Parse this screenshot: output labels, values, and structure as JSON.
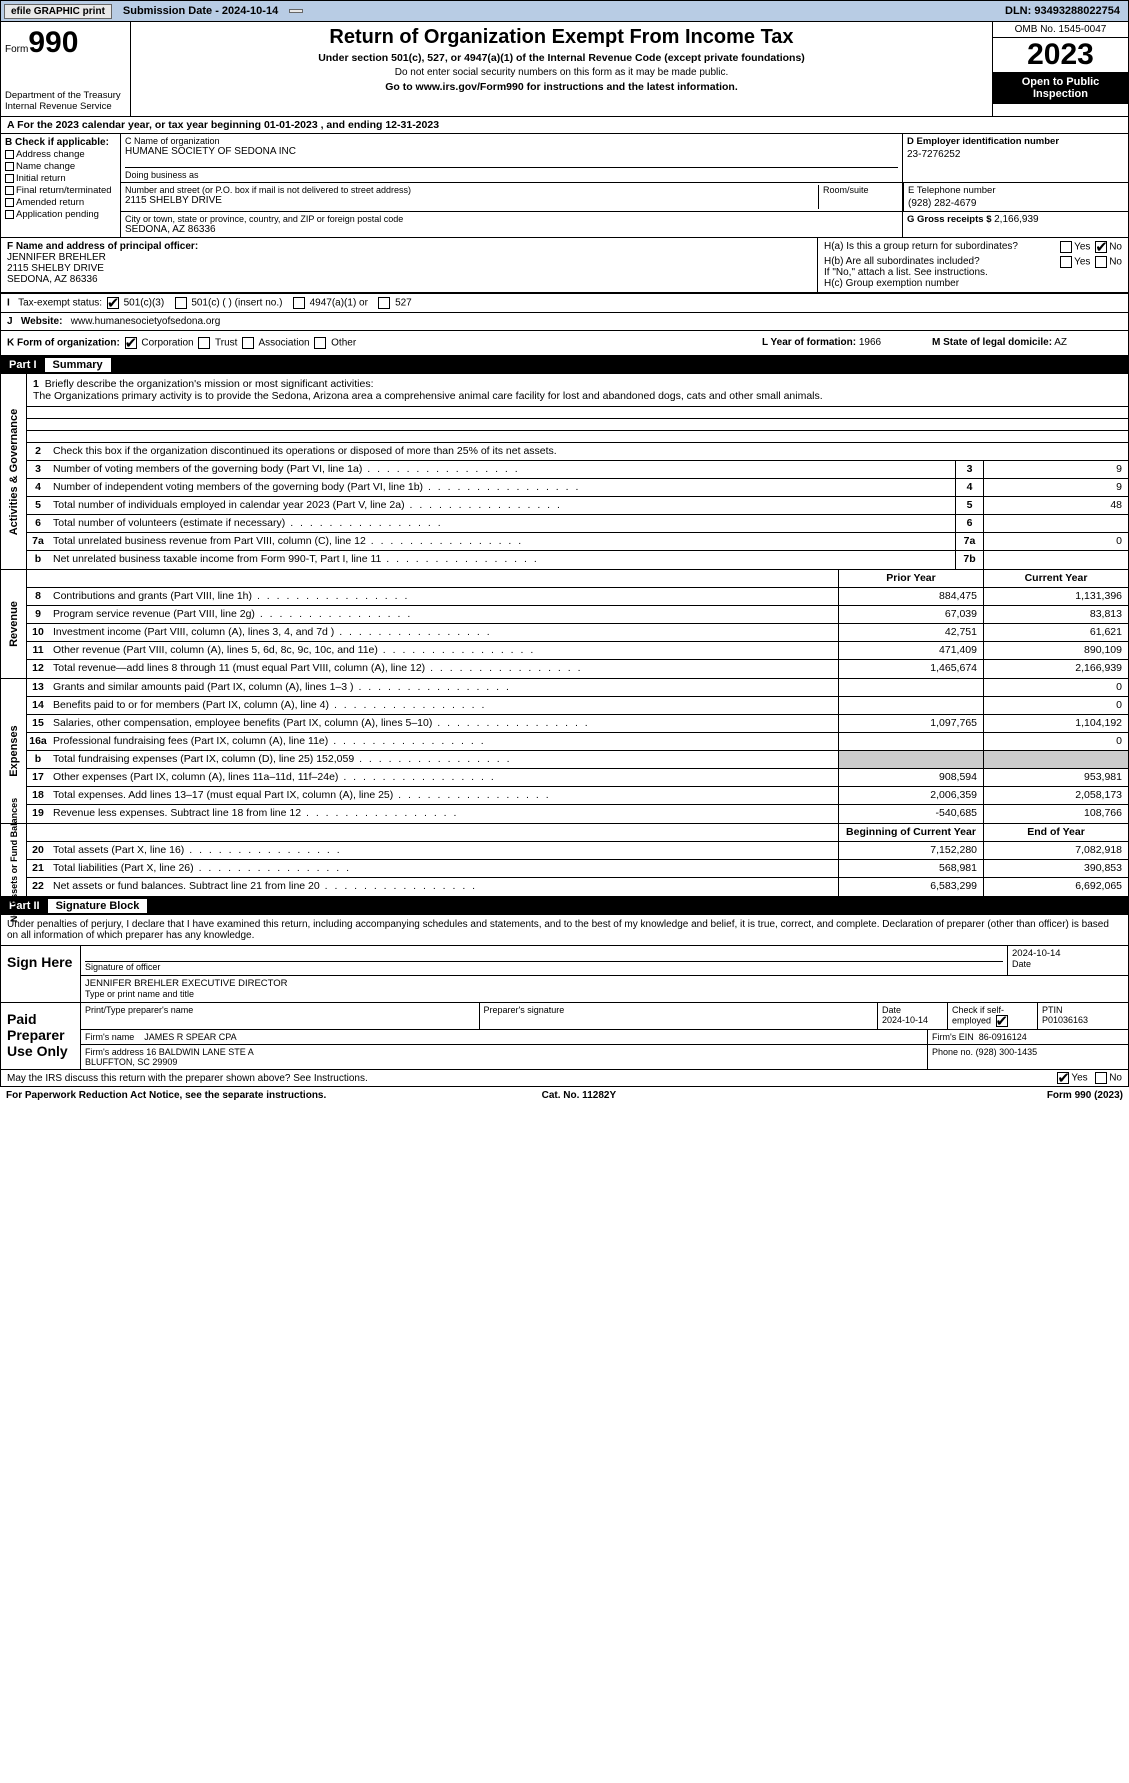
{
  "topbar": {
    "efile_label": "efile GRAPHIC print",
    "sub_date_label": "Submission Date - 2024-10-14",
    "dln": "DLN: 93493288022754"
  },
  "header": {
    "form_label": "Form",
    "form_number": "990",
    "dept": "Department of the Treasury\nInternal Revenue Service",
    "title": "Return of Organization Exempt From Income Tax",
    "sub1": "Under section 501(c), 527, or 4947(a)(1) of the Internal Revenue Code (except private foundations)",
    "sub2": "Do not enter social security numbers on this form as it may be made public.",
    "goto": "Go to www.irs.gov/Form990 for instructions and the latest information.",
    "omb": "OMB No. 1545-0047",
    "year": "2023",
    "open_pub": "Open to Public Inspection"
  },
  "row_a": "A   For the 2023 calendar year, or tax year beginning 01-01-2023    , and ending 12-31-2023",
  "box_b": {
    "label": "B Check if applicable:",
    "items": [
      "Address change",
      "Name change",
      "Initial return",
      "Final return/terminated",
      "Amended return",
      "Application pending"
    ]
  },
  "box_c": {
    "name_lbl": "C Name of organization",
    "name_val": "HUMANE SOCIETY OF SEDONA INC",
    "dba_lbl": "Doing business as",
    "dba_val": "",
    "street_lbl": "Number and street (or P.O. box if mail is not delivered to street address)",
    "street_val": "2115 SHELBY DRIVE",
    "room_lbl": "Room/suite",
    "city_lbl": "City or town, state or province, country, and ZIP or foreign postal code",
    "city_val": "SEDONA, AZ  86336"
  },
  "box_d": {
    "lbl": "D Employer identification number",
    "val": "23-7276252"
  },
  "box_e": {
    "lbl": "E Telephone number",
    "val": "(928) 282-4679"
  },
  "box_g": {
    "lbl": "G Gross receipts $",
    "val": "2,166,939"
  },
  "box_f": {
    "lbl": "F Name and address of principal officer:",
    "name": "JENNIFER BREHLER",
    "addr1": "2115 SHELBY DRIVE",
    "addr2": "SEDONA, AZ  86336"
  },
  "box_h": {
    "ha": "H(a)  Is this a group return for subordinates?",
    "hb": "H(b)  Are all subordinates included?",
    "hb_note": "If \"No,\" attach a list. See instructions.",
    "hc": "H(c)  Group exemption number",
    "yes": "Yes",
    "no": "No"
  },
  "box_i": {
    "lbl": "Tax-exempt status:",
    "o1": "501(c)(3)",
    "o2": "501(c) (  ) (insert no.)",
    "o3": "4947(a)(1) or",
    "o4": "527"
  },
  "box_j": {
    "lbl": "Website:",
    "val": "www.humanesocietyofsedona.org"
  },
  "box_k": {
    "lbl": "K Form of organization:",
    "o1": "Corporation",
    "o2": "Trust",
    "o3": "Association",
    "o4": "Other"
  },
  "box_l": {
    "lbl": "L Year of formation:",
    "val": "1966"
  },
  "box_m": {
    "lbl": "M State of legal domicile:",
    "val": "AZ"
  },
  "part1": {
    "hdr": "Part I",
    "title": "Summary"
  },
  "part2": {
    "hdr": "Part II",
    "title": "Signature Block"
  },
  "mission": {
    "lbl": "Briefly describe the organization's mission or most significant activities:",
    "text": "The Organizations primary activity is to provide the Sedona, Arizona area a comprehensive animal care facility for lost and abandoned dogs, cats and other small animals."
  },
  "line2": "Check this box      if the organization discontinued its operations or disposed of more than 25% of its net assets.",
  "lines_gov": [
    {
      "n": "3",
      "d": "Number of voting members of the governing body (Part VI, line 1a)",
      "box": "3",
      "v": "9"
    },
    {
      "n": "4",
      "d": "Number of independent voting members of the governing body (Part VI, line 1b)",
      "box": "4",
      "v": "9"
    },
    {
      "n": "5",
      "d": "Total number of individuals employed in calendar year 2023 (Part V, line 2a)",
      "box": "5",
      "v": "48"
    },
    {
      "n": "6",
      "d": "Total number of volunteers (estimate if necessary)",
      "box": "6",
      "v": ""
    },
    {
      "n": "7a",
      "d": "Total unrelated business revenue from Part VIII, column (C), line 12",
      "box": "7a",
      "v": "0"
    },
    {
      "n": "b",
      "d": "Net unrelated business taxable income from Form 990-T, Part I, line 11",
      "box": "7b",
      "v": ""
    }
  ],
  "col_hdrs": {
    "prior": "Prior Year",
    "current": "Current Year"
  },
  "lines_rev": [
    {
      "n": "8",
      "d": "Contributions and grants (Part VIII, line 1h)",
      "p": "884,475",
      "c": "1,131,396"
    },
    {
      "n": "9",
      "d": "Program service revenue (Part VIII, line 2g)",
      "p": "67,039",
      "c": "83,813"
    },
    {
      "n": "10",
      "d": "Investment income (Part VIII, column (A), lines 3, 4, and 7d )",
      "p": "42,751",
      "c": "61,621"
    },
    {
      "n": "11",
      "d": "Other revenue (Part VIII, column (A), lines 5, 6d, 8c, 9c, 10c, and 11e)",
      "p": "471,409",
      "c": "890,109"
    },
    {
      "n": "12",
      "d": "Total revenue—add lines 8 through 11 (must equal Part VIII, column (A), line 12)",
      "p": "1,465,674",
      "c": "2,166,939"
    }
  ],
  "lines_exp": [
    {
      "n": "13",
      "d": "Grants and similar amounts paid (Part IX, column (A), lines 1–3 )",
      "p": "",
      "c": "0"
    },
    {
      "n": "14",
      "d": "Benefits paid to or for members (Part IX, column (A), line 4)",
      "p": "",
      "c": "0"
    },
    {
      "n": "15",
      "d": "Salaries, other compensation, employee benefits (Part IX, column (A), lines 5–10)",
      "p": "1,097,765",
      "c": "1,104,192"
    },
    {
      "n": "16a",
      "d": "Professional fundraising fees (Part IX, column (A), line 11e)",
      "p": "",
      "c": "0"
    },
    {
      "n": "b",
      "d": "Total fundraising expenses (Part IX, column (D), line 25) 152,059",
      "p": "SHADE",
      "c": "SHADE"
    },
    {
      "n": "17",
      "d": "Other expenses (Part IX, column (A), lines 11a–11d, 11f–24e)",
      "p": "908,594",
      "c": "953,981"
    },
    {
      "n": "18",
      "d": "Total expenses. Add lines 13–17 (must equal Part IX, column (A), line 25)",
      "p": "2,006,359",
      "c": "2,058,173"
    },
    {
      "n": "19",
      "d": "Revenue less expenses. Subtract line 18 from line 12",
      "p": "-540,685",
      "c": "108,766"
    }
  ],
  "col_hdrs2": {
    "begin": "Beginning of Current Year",
    "end": "End of Year"
  },
  "lines_net": [
    {
      "n": "20",
      "d": "Total assets (Part X, line 16)",
      "p": "7,152,280",
      "c": "7,082,918"
    },
    {
      "n": "21",
      "d": "Total liabilities (Part X, line 26)",
      "p": "568,981",
      "c": "390,853"
    },
    {
      "n": "22",
      "d": "Net assets or fund balances. Subtract line 21 from line 20",
      "p": "6,583,299",
      "c": "6,692,065"
    }
  ],
  "vtabs": {
    "gov": "Activities & Governance",
    "rev": "Revenue",
    "exp": "Expenses",
    "net": "Net Assets or Fund Balances"
  },
  "sig_decl": "Under penalties of perjury, I declare that I have examined this return, including accompanying schedules and statements, and to the best of my knowledge and belief, it is true, correct, and complete. Declaration of preparer (other than officer) is based on all information of which preparer has any knowledge.",
  "sign_here": {
    "lbl": "Sign Here",
    "sig_of": "Signature of officer",
    "date": "2024-10-14",
    "name": "JENNIFER BREHLER  EXECUTIVE DIRECTOR",
    "type_lbl": "Type or print name and title",
    "date_lbl": "Date"
  },
  "paid": {
    "lbl": "Paid Preparer Use Only",
    "h1": "Print/Type preparer's name",
    "h2": "Preparer's signature",
    "h3": "Date",
    "h3v": "2024-10-14",
    "h4": "Check         if self-employed",
    "h5": "PTIN",
    "ptin": "P01036163",
    "firm_lbl": "Firm's name",
    "firm": "JAMES R SPEAR CPA",
    "ein_lbl": "Firm's EIN",
    "ein": "86-0916124",
    "addr_lbl": "Firm's address",
    "addr": "16 BALDWIN LANE STE A\nBLUFFTON, SC  29909",
    "phone_lbl": "Phone no.",
    "phone": "(928) 300-1435"
  },
  "footer": {
    "q": "May the IRS discuss this return with the preparer shown above? See Instructions.",
    "yes": "Yes",
    "no": "No",
    "pra": "For Paperwork Reduction Act Notice, see the separate instructions.",
    "cat": "Cat. No. 11282Y",
    "form": "Form 990 (2023)"
  }
}
